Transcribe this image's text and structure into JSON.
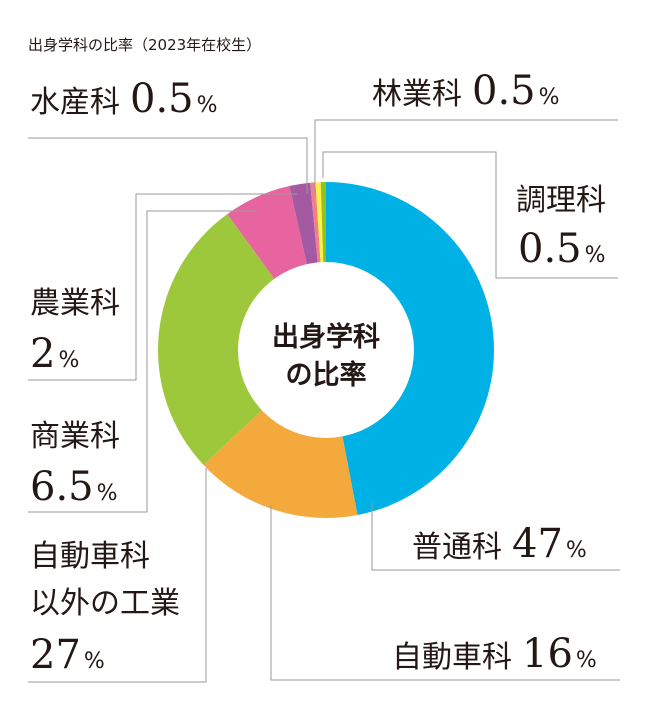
{
  "chart_data": {
    "type": "pie",
    "title": "出身学科の比率（2023年在校生）",
    "center_label": [
      "出身学科",
      "の比率"
    ],
    "unit": "%",
    "slices": [
      {
        "name": "普通科",
        "value": 47,
        "value_text": "47",
        "color": "#00b1e6"
      },
      {
        "name": "自動車科",
        "value": 16,
        "value_text": "16",
        "color": "#f4a93c"
      },
      {
        "name": "自動車科以外の工業",
        "value": 27,
        "value_text": "27",
        "color": "#9dc83c"
      },
      {
        "name": "商業科",
        "value": 6.5,
        "value_text": "6.5",
        "color": "#e8649f"
      },
      {
        "name": "農業科",
        "value": 2,
        "value_text": "2",
        "color": "#a35aa2"
      },
      {
        "name": "水産科",
        "value": 0.5,
        "value_text": "0.5",
        "color": "#f07f89"
      },
      {
        "name": "林業科",
        "value": 0.5,
        "value_text": "0.5",
        "color": "#fff04a"
      },
      {
        "name": "調理科",
        "value": 0.5,
        "value_text": "0.5",
        "color": "#8fc31f"
      }
    ]
  }
}
